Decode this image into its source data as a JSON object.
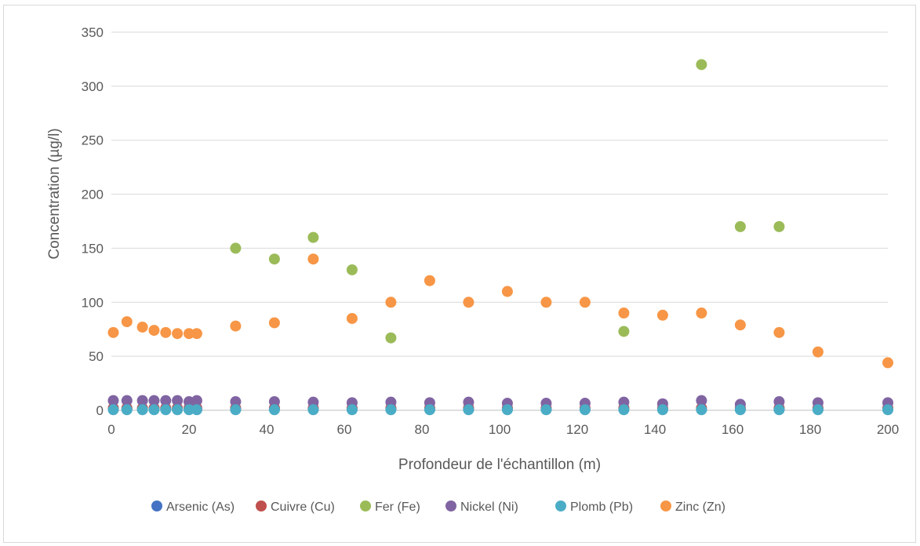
{
  "chart_data": {
    "type": "scatter",
    "title": "",
    "xlabel": "Profondeur de l'échantillon (m)",
    "ylabel": "Concentration  (µg/l)",
    "xlim": [
      0,
      200
    ],
    "ylim": [
      0,
      350
    ],
    "xticks": [
      0,
      20,
      40,
      60,
      80,
      100,
      120,
      140,
      160,
      180,
      200
    ],
    "yticks": [
      0,
      50,
      100,
      150,
      200,
      250,
      300,
      350
    ],
    "grid": "horizontal",
    "legend_position": "bottom",
    "series": [
      {
        "name": "Arsenic (As)",
        "color": "#4472C4",
        "points": [
          [
            0.5,
            1
          ],
          [
            4,
            1
          ],
          [
            8,
            1
          ],
          [
            11,
            1
          ],
          [
            14,
            1
          ],
          [
            17,
            1
          ],
          [
            20,
            1
          ],
          [
            22,
            1
          ],
          [
            32,
            1
          ],
          [
            42,
            1
          ],
          [
            52,
            1
          ],
          [
            62,
            1
          ],
          [
            72,
            1
          ],
          [
            82,
            1
          ],
          [
            92,
            1
          ],
          [
            102,
            1
          ],
          [
            112,
            1
          ],
          [
            122,
            1
          ],
          [
            132,
            1
          ],
          [
            142,
            1
          ],
          [
            152,
            1
          ],
          [
            162,
            1
          ],
          [
            172,
            1
          ],
          [
            182,
            1
          ],
          [
            200,
            1
          ]
        ]
      },
      {
        "name": "Cuivre (Cu)",
        "color": "#C0504D",
        "points": [
          [
            0.5,
            2
          ],
          [
            4,
            2
          ],
          [
            8,
            2
          ],
          [
            11,
            2
          ],
          [
            14,
            2
          ],
          [
            17,
            2
          ],
          [
            20,
            2
          ],
          [
            22,
            2
          ],
          [
            32,
            2
          ],
          [
            42,
            2
          ],
          [
            52,
            2
          ],
          [
            62,
            2
          ],
          [
            72,
            2
          ],
          [
            82,
            2
          ],
          [
            92,
            2
          ],
          [
            102,
            2
          ],
          [
            112,
            2
          ],
          [
            122,
            2
          ],
          [
            132,
            2
          ],
          [
            142,
            2
          ],
          [
            152,
            2
          ],
          [
            162,
            2
          ],
          [
            172,
            2
          ],
          [
            182,
            2
          ],
          [
            200,
            2
          ]
        ]
      },
      {
        "name": "Fer (Fe)",
        "color": "#9BBB59",
        "points": [
          [
            32,
            150
          ],
          [
            42,
            140
          ],
          [
            52,
            160
          ],
          [
            62,
            130
          ],
          [
            72,
            67
          ],
          [
            132,
            73
          ],
          [
            152,
            320
          ],
          [
            162,
            170
          ],
          [
            172,
            170
          ]
        ]
      },
      {
        "name": "Nickel (Ni)",
        "color": "#8064A2",
        "points": [
          [
            0.5,
            9
          ],
          [
            4,
            9
          ],
          [
            8,
            9
          ],
          [
            11,
            9
          ],
          [
            14,
            9
          ],
          [
            17,
            9
          ],
          [
            20,
            8
          ],
          [
            22,
            9
          ],
          [
            32,
            8
          ],
          [
            42,
            8
          ],
          [
            52,
            7.5
          ],
          [
            62,
            7
          ],
          [
            72,
            7.5
          ],
          [
            82,
            7
          ],
          [
            92,
            7.5
          ],
          [
            102,
            6.5
          ],
          [
            112,
            6.5
          ],
          [
            122,
            6.5
          ],
          [
            132,
            7.5
          ],
          [
            142,
            6
          ],
          [
            152,
            9
          ],
          [
            162,
            5.5
          ],
          [
            172,
            8
          ],
          [
            182,
            7
          ],
          [
            200,
            7
          ]
        ]
      },
      {
        "name": "Plomb (Pb)",
        "color": "#4BACC6",
        "points": [
          [
            0.5,
            0.5
          ],
          [
            4,
            0.5
          ],
          [
            8,
            0.5
          ],
          [
            11,
            0.5
          ],
          [
            14,
            0.5
          ],
          [
            17,
            0.5
          ],
          [
            20,
            0.5
          ],
          [
            22,
            0.5
          ],
          [
            32,
            0.5
          ],
          [
            42,
            0.5
          ],
          [
            52,
            0.5
          ],
          [
            62,
            0.5
          ],
          [
            72,
            0.5
          ],
          [
            82,
            0.5
          ],
          [
            92,
            0.5
          ],
          [
            102,
            0.5
          ],
          [
            112,
            0.5
          ],
          [
            122,
            0.5
          ],
          [
            132,
            0.5
          ],
          [
            142,
            0.5
          ],
          [
            152,
            0.5
          ],
          [
            162,
            0.5
          ],
          [
            172,
            0.5
          ],
          [
            182,
            0.5
          ],
          [
            200,
            0.5
          ]
        ]
      },
      {
        "name": "Zinc (Zn)",
        "color": "#F79646",
        "points": [
          [
            0.5,
            72
          ],
          [
            4,
            82
          ],
          [
            8,
            77
          ],
          [
            11,
            74
          ],
          [
            14,
            72
          ],
          [
            17,
            71
          ],
          [
            20,
            71
          ],
          [
            22,
            71
          ],
          [
            32,
            78
          ],
          [
            42,
            81
          ],
          [
            52,
            140
          ],
          [
            62,
            85
          ],
          [
            72,
            100
          ],
          [
            82,
            120
          ],
          [
            92,
            100
          ],
          [
            102,
            110
          ],
          [
            112,
            100
          ],
          [
            122,
            100
          ],
          [
            132,
            90
          ],
          [
            142,
            88
          ],
          [
            152,
            90
          ],
          [
            162,
            79
          ],
          [
            172,
            72
          ],
          [
            182,
            54
          ],
          [
            200,
            44
          ]
        ]
      }
    ]
  }
}
